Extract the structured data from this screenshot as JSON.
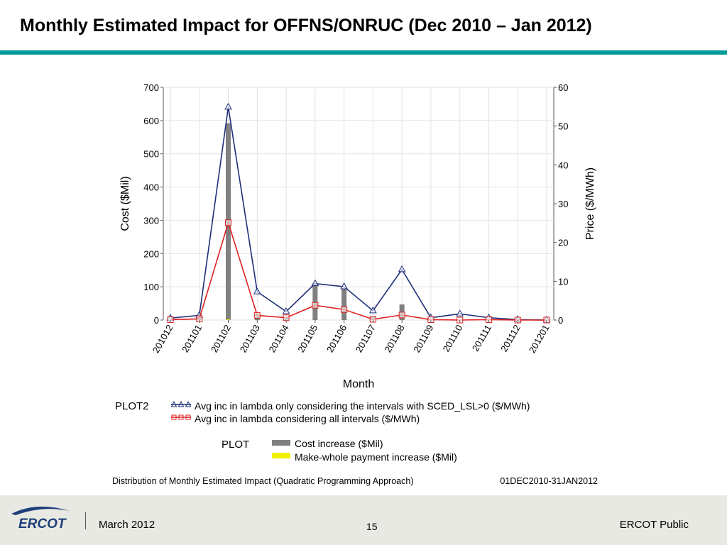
{
  "slide": {
    "title": "Monthly Estimated Impact for OFFNS/ONRUC (Dec 2010 – Jan 2012)"
  },
  "colors": {
    "accent_bar": "#009a9a",
    "bar_cost": "#808080",
    "bar_makewhole": "#f0f000",
    "line_lsl": "#1f2f7a",
    "line_all": "#e02020",
    "footer_bg": "#e9e9e3",
    "logo_blue": "#1e3f7a"
  },
  "chart_data": {
    "type": "bar",
    "xlabel": "Month",
    "ylabel_left": "Cost ($Mil)",
    "ylabel_right": "Price ($/MWh)",
    "ylim_left": [
      0,
      700
    ],
    "ylim_right": [
      0,
      60
    ],
    "yticks_left": [
      "0",
      "100",
      "200",
      "300",
      "400",
      "500",
      "600",
      "700"
    ],
    "yticks_right": [
      "0",
      "10",
      "20",
      "30",
      "40",
      "50",
      "60"
    ],
    "grid": true,
    "categories": [
      "201012",
      "201101",
      "201102",
      "201103",
      "201104",
      "201105",
      "201106",
      "201107",
      "201108",
      "201109",
      "201110",
      "201111",
      "201112",
      "201201"
    ],
    "bar_series": [
      {
        "name": "Cost increase ($Mil)",
        "axis": "left",
        "values": [
          2,
          8,
          592,
          20,
          10,
          110,
          95,
          10,
          47,
          2,
          1,
          3,
          0,
          0
        ]
      },
      {
        "name": "Make-whole payment increase ($Mil)",
        "axis": "left",
        "values": [
          0,
          0,
          2,
          0,
          0,
          0,
          0,
          0,
          0,
          0,
          0,
          0,
          0,
          0
        ]
      }
    ],
    "line_series": [
      {
        "name": "Avg inc in lambda only considering the intervals with SCED_LSL>0 ($/MWh)",
        "axis": "right",
        "marker": "triangle",
        "values": [
          0.5,
          1.2,
          54.9,
          7.3,
          2.2,
          9.4,
          8.6,
          2.4,
          13.0,
          0.6,
          1.6,
          0.6,
          0.1,
          0.0
        ]
      },
      {
        "name": "Avg inc in lambda considering all intervals  ($/MWh)",
        "axis": "right",
        "marker": "square",
        "values": [
          0.1,
          0.3,
          25.1,
          1.2,
          0.6,
          3.8,
          2.7,
          0.2,
          1.3,
          0.1,
          0.0,
          0.1,
          0.0,
          0.0
        ]
      }
    ],
    "legend": {
      "plot2_label": "PLOT2",
      "plot_label": "PLOT"
    },
    "caption": "Distribution of Monthly Estimated Impact (Quadratic Programming Approach)",
    "date_range": "01DEC2010-31JAN2012"
  },
  "footer": {
    "logo_text": "ERCOT",
    "date": "March 2012",
    "page_number": "15",
    "classification": "ERCOT Public"
  }
}
